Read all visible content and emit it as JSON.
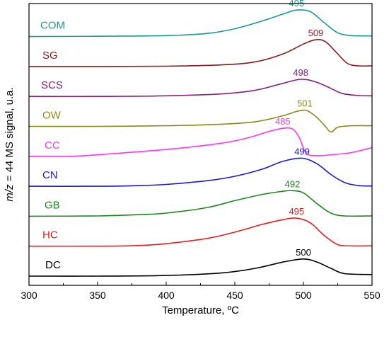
{
  "chart_data": {
    "type": "line",
    "xlabel": "Temperature, ºC",
    "ylabel_prefix": "m/z",
    "ylabel_rest": " = 44 MS signal, u.a.",
    "xlim": [
      300,
      550
    ],
    "xticks": [
      300,
      350,
      400,
      450,
      500,
      550
    ],
    "xtick_labels": [
      "300",
      "350",
      "400",
      "450",
      "500",
      "550"
    ],
    "y_ticks_shown": false,
    "series": [
      {
        "name": "COM",
        "peak_label": "495",
        "peak_x": 495,
        "color": "#1a9a96",
        "x": [
          300,
          350,
          400,
          430,
          450,
          470,
          485,
          495,
          505,
          515,
          525,
          535,
          550
        ],
        "y": [
          0.0,
          0.01,
          0.03,
          0.1,
          0.25,
          0.5,
          0.72,
          0.85,
          0.8,
          0.45,
          0.12,
          0.03,
          0.02
        ]
      },
      {
        "name": "SG",
        "peak_label": "509",
        "peak_x": 509,
        "color": "#8b1a1a",
        "x": [
          300,
          350,
          400,
          440,
          465,
          485,
          500,
          509,
          516,
          524,
          532,
          540,
          550
        ],
        "y": [
          0.0,
          0.0,
          0.01,
          0.05,
          0.15,
          0.4,
          0.72,
          0.86,
          0.8,
          0.45,
          0.1,
          0.02,
          0.02
        ]
      },
      {
        "name": "SCS",
        "peak_label": "498",
        "peak_x": 498,
        "color": "#8a1f7d",
        "x": [
          300,
          350,
          400,
          440,
          465,
          485,
          498,
          508,
          518,
          528,
          540,
          550
        ],
        "y": [
          0.0,
          0.0,
          0.02,
          0.08,
          0.2,
          0.42,
          0.55,
          0.48,
          0.3,
          0.1,
          0.03,
          0.02
        ]
      },
      {
        "name": "OW",
        "peak_label": "501",
        "peak_x": 501,
        "color": "#8a8a1a",
        "x": [
          300,
          350,
          400,
          440,
          465,
          485,
          495,
          501,
          505,
          510,
          515,
          520,
          525,
          535,
          550
        ],
        "y": [
          0.0,
          0.0,
          0.02,
          0.07,
          0.15,
          0.34,
          0.48,
          0.52,
          0.45,
          0.28,
          0.05,
          -0.18,
          -0.03,
          0.02,
          0.02
        ]
      },
      {
        "name": "CC",
        "peak_label": "485",
        "peak_x": 485,
        "color": "#ff33ff",
        "x": [
          300,
          330,
          350,
          400,
          440,
          460,
          475,
          485,
          492,
          497,
          502,
          510,
          520,
          535,
          550
        ],
        "y": [
          0.0,
          0.0,
          0.05,
          0.22,
          0.42,
          0.6,
          0.8,
          0.9,
          0.88,
          0.6,
          0.1,
          0.02,
          0.05,
          0.12,
          0.28
        ]
      },
      {
        "name": "CN",
        "peak_label": "499",
        "peak_x": 499,
        "color": "#1a1ad8",
        "x": [
          300,
          350,
          380,
          400,
          430,
          450,
          470,
          485,
          499,
          510,
          520,
          530,
          540,
          550
        ],
        "y": [
          0.0,
          0.0,
          0.02,
          0.06,
          0.18,
          0.32,
          0.55,
          0.8,
          0.9,
          0.72,
          0.38,
          0.12,
          0.02,
          0.01
        ]
      },
      {
        "name": "GB",
        "peak_label": "492",
        "peak_x": 492,
        "color": "#1a8a1a",
        "x": [
          300,
          350,
          380,
          400,
          430,
          450,
          470,
          485,
          492,
          500,
          510,
          520,
          530,
          550
        ],
        "y": [
          0.0,
          0.01,
          0.05,
          0.1,
          0.28,
          0.5,
          0.7,
          0.8,
          0.82,
          0.75,
          0.4,
          0.1,
          0.01,
          0.01
        ]
      },
      {
        "name": "HC",
        "peak_label": "495",
        "peak_x": 495,
        "color": "#ee1c1c",
        "x": [
          300,
          350,
          380,
          400,
          430,
          450,
          470,
          485,
          495,
          505,
          515,
          525,
          535,
          550
        ],
        "y": [
          0.0,
          0.0,
          0.02,
          0.08,
          0.25,
          0.45,
          0.7,
          0.85,
          0.9,
          0.75,
          0.35,
          0.05,
          0.01,
          0.01
        ]
      },
      {
        "name": "DC",
        "peak_label": "500",
        "peak_x": 500,
        "color": "#000000",
        "x": [
          300,
          350,
          400,
          440,
          465,
          485,
          500,
          510,
          520,
          530,
          550
        ],
        "y": [
          0.0,
          0.0,
          0.02,
          0.1,
          0.25,
          0.45,
          0.55,
          0.45,
          0.25,
          0.08,
          0.05
        ]
      }
    ]
  }
}
